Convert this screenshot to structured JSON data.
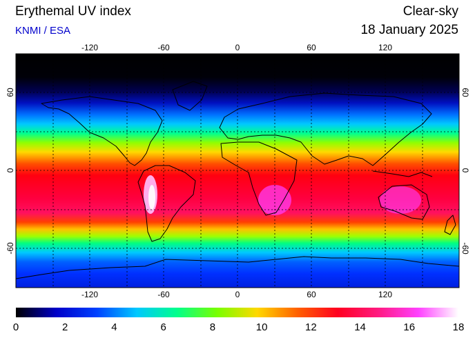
{
  "header": {
    "title": "Erythemal UV index",
    "credit": "KNMI / ESA",
    "mode": "Clear-sky",
    "date": "18 January 2025"
  },
  "map": {
    "lon_ticks": [
      "-120",
      "-60",
      "0",
      "60",
      "120"
    ],
    "lat_ticks": [
      "60",
      "0",
      "-60"
    ]
  },
  "colorbar": {
    "ticks": [
      "0",
      "2",
      "4",
      "6",
      "8",
      "10",
      "12",
      "14",
      "16",
      "18"
    ],
    "colors": [
      "#000000",
      "#0000c8",
      "#0040ff",
      "#00c8ff",
      "#00ff8c",
      "#78ff00",
      "#ffd800",
      "#ff6000",
      "#ff0020",
      "#ff1a80",
      "#ff40ff",
      "#ffffff"
    ]
  }
}
